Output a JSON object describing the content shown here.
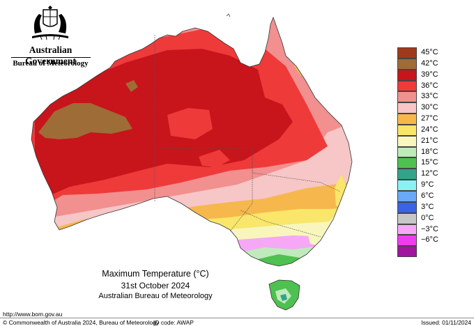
{
  "header": {
    "government": "Australian Government",
    "bureau": "Bureau of Meteorology"
  },
  "legend": [
    {
      "label": "45°C",
      "color": "#a0391c"
    },
    {
      "label": "42°C",
      "color": "#9e6c36"
    },
    {
      "label": "39°C",
      "color": "#c8141b"
    },
    {
      "label": "36°C",
      "color": "#ef3a3a"
    },
    {
      "label": "33°C",
      "color": "#f28f8f"
    },
    {
      "label": "30°C",
      "color": "#f7c6c6"
    },
    {
      "label": "27°C",
      "color": "#f6b84c"
    },
    {
      "label": "24°C",
      "color": "#f9e66a"
    },
    {
      "label": "21°C",
      "color": "#f8f6bd"
    },
    {
      "label": "18°C",
      "color": "#bfeabb"
    },
    {
      "label": "15°C",
      "color": "#4ec150"
    },
    {
      "label": "12°C",
      "color": "#33a38a"
    },
    {
      "label": "9°C",
      "color": "#8af1f5"
    },
    {
      "label": "6°C",
      "color": "#69a9f5"
    },
    {
      "label": "3°C",
      "color": "#3c62e8"
    },
    {
      "label": "0°C",
      "color": "#c7c7c7"
    },
    {
      "label": "−3°C",
      "color": "#f6a8f6"
    },
    {
      "label": "−6°C",
      "color": "#f03cf0"
    },
    {
      "label": "",
      "color": "#a0149e"
    }
  ],
  "caption": {
    "title": "Maximum Temperature (°C)",
    "date": "31st October 2024",
    "source": "Australian Bureau of Meteorology"
  },
  "footer": {
    "url": "http://www.bom.gov.au",
    "copyright": "© Commonwealth of Australia 2024, Bureau of Meteorology",
    "id_code": "ID code: AWAP",
    "issued": "Issued: 01/11/2024"
  }
}
